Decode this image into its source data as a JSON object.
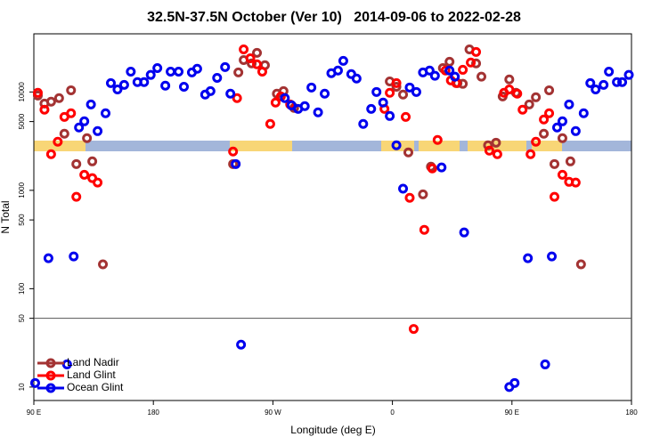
{
  "chart_data": {
    "type": "scatter",
    "title": "32.5N-37.5N October (Ver 10)   2014-09-06 to 2022-02-28",
    "x_label": "Longitude (deg E)",
    "y_label": "N Total",
    "xlim": [
      90,
      540
    ],
    "xticks": [
      {
        "value": 90,
        "label": "90 E"
      },
      180,
      {
        "value": 270,
        "label": "90 W"
      },
      {
        "value": 360,
        "label": "0"
      },
      {
        "value": 450,
        "label": "90 E"
      },
      {
        "value": 540,
        "label": "180"
      }
    ],
    "ylim": [
      7.3,
      39000
    ],
    "yticks": [
      10,
      50,
      100,
      500,
      1000,
      5000,
      10000
    ],
    "y_log": true,
    "hline": 50,
    "legend": "lower left",
    "series": [
      {
        "name": "Land Nadir",
        "color": "#a33333",
        "x": [
          93,
          98,
          103,
          109,
          113,
          118,
          122,
          130,
          134,
          142,
          240,
          244,
          248,
          254,
          258,
          264,
          273,
          278,
          286,
          358,
          363,
          368,
          372,
          383,
          389,
          398,
          403,
          409,
          413,
          418,
          423,
          427,
          432,
          438,
          443,
          448,
          453,
          463,
          468,
          474,
          478,
          482,
          488,
          494,
          502
        ],
        "values": [
          9200,
          7620,
          7960,
          8650,
          3760,
          10400,
          1850,
          3390,
          1970,
          177,
          1850,
          15800,
          21100,
          19500,
          25000,
          18700,
          9600,
          10200,
          6880,
          12800,
          11300,
          9400,
          2430,
          910,
          1740,
          17500,
          20300,
          12300,
          12100,
          27100,
          19500,
          14300,
          2870,
          3050,
          9000,
          13400,
          9800,
          7470,
          8830,
          3760,
          10400,
          1850,
          3390,
          1970,
          177
        ]
      },
      {
        "name": "Land Glint",
        "color": "#ff0000",
        "x": [
          93,
          98,
          103,
          108,
          113,
          118,
          122,
          128,
          134,
          138,
          240,
          243,
          248,
          253,
          258,
          262,
          268,
          272,
          276,
          283,
          354,
          358,
          363,
          370,
          373,
          376,
          384,
          390,
          394,
          400,
          404,
          408,
          413,
          419,
          423,
          433,
          439,
          444,
          448,
          454,
          458,
          464,
          468,
          474,
          478,
          482,
          488,
          493,
          498
        ],
        "values": [
          9800,
          6600,
          2330,
          3120,
          5580,
          6070,
          860,
          1440,
          1330,
          1200,
          2480,
          8650,
          27100,
          22000,
          19100,
          16100,
          4730,
          7800,
          9000,
          7470,
          6730,
          9800,
          12300,
          5580,
          840,
          39,
          397,
          1670,
          3250,
          16500,
          13100,
          12300,
          16800,
          19900,
          25500,
          2530,
          2330,
          9800,
          10600,
          9600,
          6600,
          2330,
          3120,
          5250,
          6070,
          860,
          1440,
          1220,
          1200
        ]
      },
      {
        "name": "Ocean Glint",
        "color": "#0000ee",
        "x": [
          91,
          101,
          115,
          120,
          124,
          128,
          133,
          138,
          144,
          148,
          153,
          158,
          163,
          168,
          173,
          178,
          183,
          189,
          193,
          199,
          203,
          209,
          213,
          219,
          223,
          228,
          234,
          238,
          242,
          246,
          279,
          284,
          289,
          294,
          299,
          304,
          309,
          314,
          319,
          323,
          329,
          333,
          338,
          344,
          348,
          353,
          358,
          363,
          368,
          373,
          378,
          383,
          388,
          392,
          397,
          403,
          407,
          414,
          448,
          452,
          462,
          475,
          480,
          484,
          488,
          493,
          498,
          504,
          509,
          513,
          519,
          523,
          529,
          533,
          538
        ],
        "values": [
          11,
          204,
          17,
          213,
          4350,
          5030,
          7470,
          4000,
          6070,
          12300,
          10600,
          11800,
          16100,
          12600,
          12600,
          14900,
          17500,
          11600,
          16100,
          16100,
          11300,
          15800,
          17200,
          9400,
          10200,
          13900,
          17900,
          9600,
          1850,
          27,
          8650,
          7320,
          6730,
          7170,
          11100,
          6200,
          9600,
          15500,
          16500,
          20700,
          15200,
          13700,
          4730,
          6730,
          10000,
          7800,
          5700,
          2870,
          1040,
          11100,
          10000,
          15800,
          16500,
          14600,
          1710,
          16500,
          14300,
          373,
          10,
          11,
          204,
          17,
          213,
          4350,
          5030,
          7470,
          4000,
          6070,
          12300,
          10600,
          11800,
          16100,
          12600,
          12600,
          14900
        ]
      }
    ]
  }
}
